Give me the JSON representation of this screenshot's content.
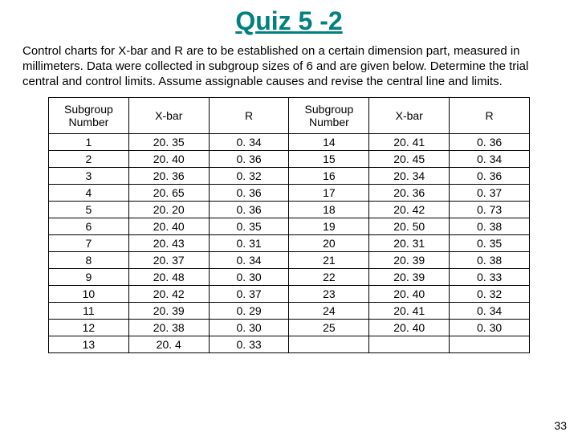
{
  "title": "Quiz 5 -2",
  "description": "Control charts for X-bar and R are to be established on a certain dimension part, measured in millimeters. Data were collected in subgroup sizes of 6 and are given below. Determine the trial central and control limits. Assume assignable causes and revise the central line and limits.",
  "page_number": "33",
  "table": {
    "columns": [
      "Subgroup Number",
      "X-bar",
      "R",
      "Subgroup Number",
      "X-bar",
      "R"
    ],
    "rows": [
      [
        "1",
        "20. 35",
        "0. 34",
        "14",
        "20. 41",
        "0. 36"
      ],
      [
        "2",
        "20. 40",
        "0. 36",
        "15",
        "20. 45",
        "0. 34"
      ],
      [
        "3",
        "20. 36",
        "0. 32",
        "16",
        "20. 34",
        "0. 36"
      ],
      [
        "4",
        "20. 65",
        "0. 36",
        "17",
        "20. 36",
        "0. 37"
      ],
      [
        "5",
        "20. 20",
        "0. 36",
        "18",
        "20. 42",
        "0. 73"
      ],
      [
        "6",
        "20. 40",
        "0. 35",
        "19",
        "20. 50",
        "0. 38"
      ],
      [
        "7",
        "20. 43",
        "0. 31",
        "20",
        "20. 31",
        "0. 35"
      ],
      [
        "8",
        "20. 37",
        "0. 34",
        "21",
        "20. 39",
        "0. 38"
      ],
      [
        "9",
        "20. 48",
        "0. 30",
        "22",
        "20. 39",
        "0. 33"
      ],
      [
        "10",
        "20. 42",
        "0. 37",
        "23",
        "20. 40",
        "0. 32"
      ],
      [
        "11",
        "20. 39",
        "0. 29",
        "24",
        "20. 41",
        "0. 34"
      ],
      [
        "12",
        "20. 38",
        "0. 30",
        "25",
        "20. 40",
        "0. 30"
      ],
      [
        "13",
        "20. 4",
        "0. 33",
        "",
        "",
        ""
      ]
    ]
  }
}
